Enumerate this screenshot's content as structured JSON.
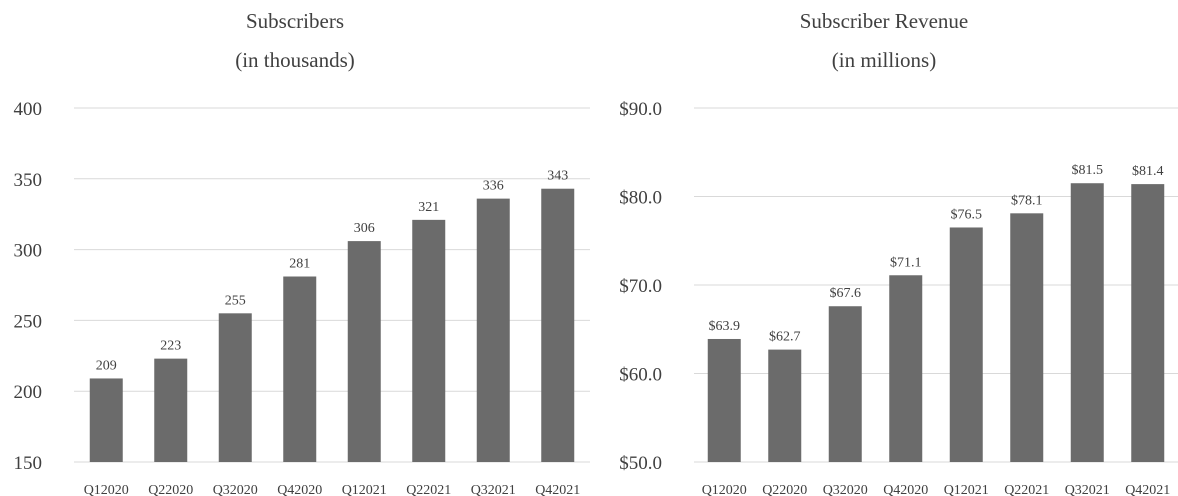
{
  "chart_data": [
    {
      "type": "bar",
      "title": "Subscribers",
      "subtitle": "(in thousands)",
      "categories": [
        "Q12020",
        "Q22020",
        "Q32020",
        "Q42020",
        "Q12021",
        "Q22021",
        "Q32021",
        "Q42021"
      ],
      "values": [
        209,
        223,
        255,
        281,
        306,
        321,
        336,
        343
      ],
      "data_labels": [
        "209",
        "223",
        "255",
        "281",
        "306",
        "321",
        "336",
        "343"
      ],
      "ylim": [
        150,
        400
      ],
      "yticks": [
        150,
        200,
        250,
        300,
        350,
        400
      ],
      "ytick_labels": [
        "150",
        "200",
        "250",
        "300",
        "350",
        "400"
      ],
      "grid": true,
      "bar_color": "#6b6b6b",
      "xlabel": "",
      "ylabel": ""
    },
    {
      "type": "bar",
      "title": "Subscriber Revenue",
      "subtitle": "(in millions)",
      "categories": [
        "Q12020",
        "Q22020",
        "Q32020",
        "Q42020",
        "Q12021",
        "Q22021",
        "Q32021",
        "Q42021"
      ],
      "values": [
        63.9,
        62.7,
        67.6,
        71.1,
        76.5,
        78.1,
        81.5,
        81.4
      ],
      "data_labels": [
        "$63.9",
        "$62.7",
        "$67.6",
        "$71.1",
        "$76.5",
        "$78.1",
        "$81.5",
        "$81.4"
      ],
      "ylim": [
        50,
        90
      ],
      "yticks": [
        50,
        60,
        70,
        80,
        90
      ],
      "ytick_labels": [
        "$50.0",
        "$60.0",
        "$70.0",
        "$80.0",
        "$90.0"
      ],
      "grid": true,
      "bar_color": "#6b6b6b",
      "xlabel": "",
      "ylabel": ""
    }
  ]
}
